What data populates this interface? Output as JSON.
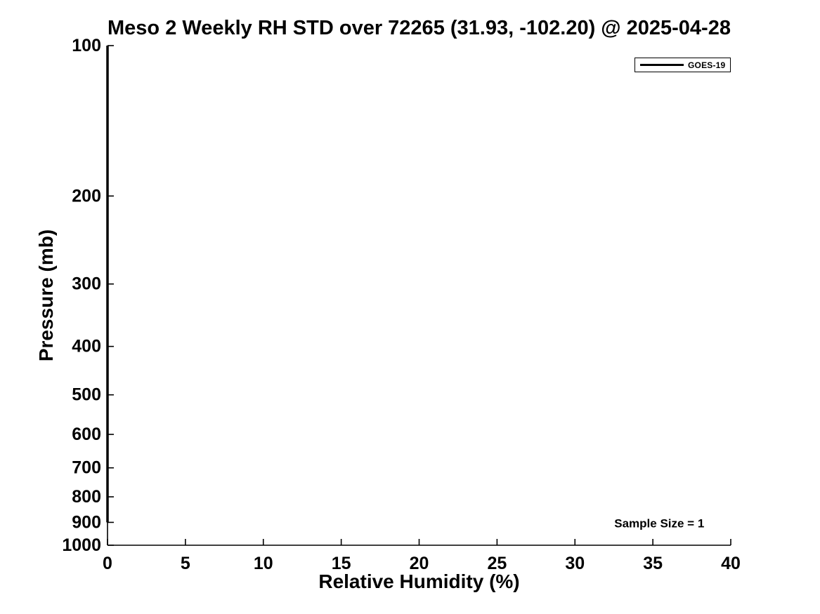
{
  "chart_data": {
    "type": "line",
    "title": "Meso 2 Weekly RH STD over 72265 (31.93, -102.20) @ 2025-04-28",
    "xlabel": "Relative Humidity (%)",
    "ylabel": "Pressure (mb)",
    "xlim": [
      0,
      40
    ],
    "xticks": [
      0,
      5,
      10,
      15,
      20,
      25,
      30,
      35,
      40
    ],
    "ylim": [
      100,
      1000
    ],
    "yticks": [
      100,
      200,
      300,
      400,
      500,
      600,
      700,
      800,
      900,
      1000
    ],
    "yscale": "log",
    "y_direction": "reversed",
    "grid": false,
    "background_color": "#ffffff",
    "axis_color": "#000000",
    "legend": {
      "position": "top-right"
    },
    "series": [
      {
        "name": "GOES-19",
        "color": "#000000",
        "x": [
          0,
          0
        ],
        "y_pressure_mb": [
          100,
          900
        ]
      }
    ],
    "annotations": [
      {
        "text": "Sample Size = 1",
        "x": 38.3,
        "y_pressure_mb": 905,
        "anchor": "end"
      }
    ]
  }
}
